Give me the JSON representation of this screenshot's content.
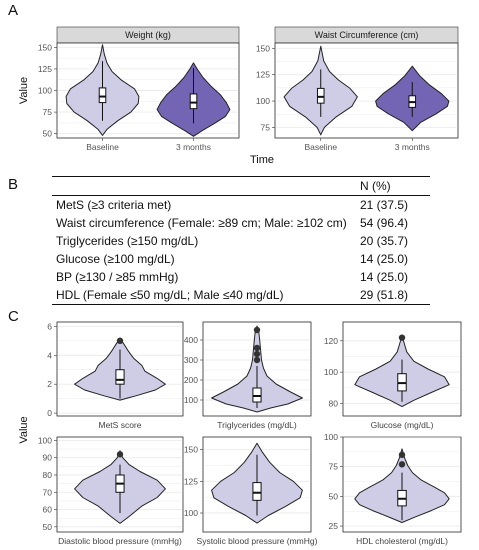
{
  "panel_labels": {
    "a": "A",
    "b": "B",
    "c": "C"
  },
  "colors": {
    "baseline_fill": "#cfcde6",
    "followup_fill": "#7465b4",
    "strip_bg": "#d9d9d9",
    "grid": "#ebebeb",
    "outline": "#222222"
  },
  "table": {
    "header_n": "N (%)",
    "rows": [
      {
        "label": "MetS (≥3 criteria met)",
        "value": "21 (37.5)"
      },
      {
        "label": "Waist circumference (Female: ≥89 cm; Male: ≥102 cm)",
        "value": "54 (96.4)"
      },
      {
        "label": "Triglycerides (≥150 mg/dL)",
        "value": "20 (35.7)"
      },
      {
        "label": "Glucose (≥100 mg/dL)",
        "value": "14 (25.0)"
      },
      {
        "label": "BP (≥130 / ≥85 mmHg)",
        "value": "14 (25.0)"
      },
      {
        "label": "HDL (Female ≤50 mg/dL; Male ≤40 mg/dL)",
        "value": "29 (51.8)"
      }
    ]
  },
  "chart_data": [
    {
      "type": "violin",
      "panel": "A",
      "title": "Weight (kg)",
      "ylabel": "Value",
      "xlabel": "Time",
      "categories": [
        "Baseline",
        "3 months"
      ],
      "ylim": [
        45,
        155
      ],
      "yticks": [
        50,
        75,
        100,
        125,
        150
      ],
      "violins": [
        {
          "name": "Baseline",
          "fill": "baseline",
          "density": [
            [
              48,
              0.0
            ],
            [
              55,
              0.12
            ],
            [
              65,
              0.42
            ],
            [
              75,
              0.78
            ],
            [
              85,
              0.98
            ],
            [
              93,
              1.0
            ],
            [
              102,
              0.88
            ],
            [
              112,
              0.52
            ],
            [
              122,
              0.26
            ],
            [
              132,
              0.12
            ],
            [
              142,
              0.05
            ],
            [
              153,
              0.0
            ]
          ],
          "box": {
            "q1": 86,
            "median": 93,
            "q3": 103,
            "whisker_low": 65,
            "whisker_high": 134
          },
          "outliers": []
        },
        {
          "name": "3 months",
          "fill": "followup",
          "density": [
            [
              47,
              0.0
            ],
            [
              53,
              0.22
            ],
            [
              62,
              0.58
            ],
            [
              70,
              0.88
            ],
            [
              78,
              1.0
            ],
            [
              86,
              0.9
            ],
            [
              95,
              0.74
            ],
            [
              105,
              0.48
            ],
            [
              115,
              0.26
            ],
            [
              125,
              0.1
            ],
            [
              132,
              0.0
            ]
          ],
          "box": {
            "q1": 79,
            "median": 86,
            "q3": 96,
            "whisker_low": 62,
            "whisker_high": 126
          },
          "outliers": []
        }
      ]
    },
    {
      "type": "violin",
      "panel": "A",
      "title": "Waist Circumference (cm)",
      "categories": [
        "Baseline",
        "3 months"
      ],
      "ylim": [
        65,
        155
      ],
      "yticks": [
        75,
        100,
        125,
        150
      ],
      "violins": [
        {
          "name": "Baseline",
          "fill": "baseline",
          "density": [
            [
              68,
              0.0
            ],
            [
              75,
              0.1
            ],
            [
              85,
              0.42
            ],
            [
              95,
              0.85
            ],
            [
              104,
              1.0
            ],
            [
              112,
              0.8
            ],
            [
              120,
              0.48
            ],
            [
              128,
              0.24
            ],
            [
              138,
              0.08
            ],
            [
              152,
              0.0
            ]
          ],
          "box": {
            "q1": 98,
            "median": 104,
            "q3": 112,
            "whisker_low": 85,
            "whisker_high": 130
          },
          "outliers": []
        },
        {
          "name": "3 months",
          "fill": "followup",
          "density": [
            [
              72,
              0.0
            ],
            [
              80,
              0.24
            ],
            [
              88,
              0.66
            ],
            [
              95,
              0.96
            ],
            [
              100,
              1.0
            ],
            [
              107,
              0.8
            ],
            [
              115,
              0.48
            ],
            [
              124,
              0.2
            ],
            [
              133,
              0.0
            ]
          ],
          "box": {
            "q1": 94,
            "median": 99,
            "q3": 105,
            "whisker_low": 85,
            "whisker_high": 118
          },
          "outliers": []
        }
      ]
    },
    {
      "type": "violin",
      "panel": "C",
      "xlabel": "MetS score",
      "ylabel": "Value",
      "ylim": [
        -0.2,
        6.3
      ],
      "yticks": [
        0,
        2,
        4,
        6
      ],
      "violins": [
        {
          "density": [
            [
              0.9,
              0.0
            ],
            [
              1.2,
              0.35
            ],
            [
              1.6,
              0.78
            ],
            [
              2.0,
              1.0
            ],
            [
              2.4,
              0.82
            ],
            [
              2.9,
              0.55
            ],
            [
              3.3,
              0.48
            ],
            [
              3.8,
              0.3
            ],
            [
              4.3,
              0.18
            ],
            [
              4.8,
              0.08
            ],
            [
              5.2,
              0.0
            ]
          ],
          "box": {
            "q1": 2,
            "median": 2.3,
            "q3": 3,
            "whisker_low": 1,
            "whisker_high": 4.4
          },
          "outliers": [
            5
          ]
        }
      ]
    },
    {
      "type": "violin",
      "panel": "C",
      "xlabel": "Triglycerides (mg/dL)",
      "ylim": [
        20,
        490
      ],
      "yticks": [
        100,
        200,
        300,
        400
      ],
      "violins": [
        {
          "density": [
            [
              40,
              0.0
            ],
            [
              60,
              0.3
            ],
            [
              80,
              0.68
            ],
            [
              110,
              1.0
            ],
            [
              140,
              0.74
            ],
            [
              180,
              0.42
            ],
            [
              220,
              0.22
            ],
            [
              260,
              0.14
            ],
            [
              300,
              0.1
            ],
            [
              350,
              0.08
            ],
            [
              400,
              0.06
            ],
            [
              440,
              0.04
            ],
            [
              470,
              0.0
            ]
          ],
          "box": {
            "q1": 90,
            "median": 120,
            "q3": 160,
            "whisker_low": 60,
            "whisker_high": 270
          },
          "outliers": [
            300,
            330,
            360,
            450
          ]
        }
      ]
    },
    {
      "type": "violin",
      "panel": "C",
      "xlabel": "Glucose (mg/dL)",
      "ylim": [
        72,
        132
      ],
      "yticks": [
        80,
        100,
        120
      ],
      "violins": [
        {
          "density": [
            [
              78,
              0.0
            ],
            [
              82,
              0.25
            ],
            [
              87,
              0.62
            ],
            [
              92,
              1.0
            ],
            [
              97,
              0.9
            ],
            [
              102,
              0.55
            ],
            [
              107,
              0.25
            ],
            [
              113,
              0.1
            ],
            [
              118,
              0.05
            ],
            [
              123,
              0.0
            ]
          ],
          "box": {
            "q1": 88,
            "median": 93,
            "q3": 99,
            "whisker_low": 81,
            "whisker_high": 108
          },
          "outliers": [
            122
          ]
        }
      ]
    },
    {
      "type": "violin",
      "panel": "C",
      "xlabel": "Diastolic blood pressure (mmHg)",
      "ylabel": "Value",
      "ylim": [
        47,
        102
      ],
      "yticks": [
        50,
        60,
        70,
        80,
        90,
        100
      ],
      "violins": [
        {
          "density": [
            [
              52,
              0.0
            ],
            [
              56,
              0.2
            ],
            [
              62,
              0.48
            ],
            [
              67,
              0.82
            ],
            [
              72,
              1.0
            ],
            [
              77,
              0.82
            ],
            [
              82,
              0.44
            ],
            [
              86,
              0.2
            ],
            [
              90,
              0.06
            ],
            [
              94,
              0.0
            ]
          ],
          "box": {
            "q1": 70,
            "median": 75,
            "q3": 80,
            "whisker_low": 58,
            "whisker_high": 86
          },
          "outliers": [
            92
          ]
        }
      ]
    },
    {
      "type": "violin",
      "panel": "C",
      "xlabel": "Systolic blood pressure (mmHg)",
      "ylim": [
        85,
        160
      ],
      "yticks": [
        100,
        125,
        150
      ],
      "violins": [
        {
          "density": [
            [
              92,
              0.0
            ],
            [
              98,
              0.25
            ],
            [
              105,
              0.62
            ],
            [
              112,
              0.95
            ],
            [
              118,
              1.0
            ],
            [
              125,
              0.8
            ],
            [
              132,
              0.5
            ],
            [
              140,
              0.28
            ],
            [
              148,
              0.12
            ],
            [
              155,
              0.0
            ]
          ],
          "box": {
            "q1": 110,
            "median": 116,
            "q3": 124,
            "whisker_low": 98,
            "whisker_high": 146
          },
          "outliers": []
        }
      ]
    },
    {
      "type": "violin",
      "panel": "C",
      "xlabel": "HDL cholesterol (mg/dL)",
      "ylim": [
        20,
        100
      ],
      "yticks": [
        25,
        50,
        75,
        100
      ],
      "violins": [
        {
          "density": [
            [
              28,
              0.0
            ],
            [
              33,
              0.3
            ],
            [
              38,
              0.62
            ],
            [
              43,
              0.9
            ],
            [
              48,
              1.0
            ],
            [
              53,
              0.9
            ],
            [
              58,
              0.68
            ],
            [
              64,
              0.4
            ],
            [
              70,
              0.22
            ],
            [
              76,
              0.12
            ],
            [
              82,
              0.06
            ],
            [
              90,
              0.0
            ]
          ],
          "box": {
            "q1": 42,
            "median": 48,
            "q3": 55,
            "whisker_low": 30,
            "whisker_high": 70
          },
          "outliers": [
            77,
            85
          ]
        }
      ]
    }
  ]
}
